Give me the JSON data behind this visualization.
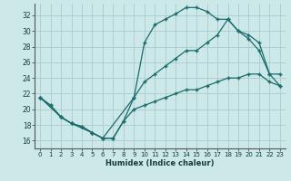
{
  "xlabel": "Humidex (Indice chaleur)",
  "background_color": "#cce8e8",
  "grid_color": "#aacccc",
  "line_color": "#1a6b6b",
  "xlim": [
    -0.5,
    23.5
  ],
  "ylim": [
    15.0,
    33.5
  ],
  "yticks": [
    16,
    18,
    20,
    22,
    24,
    26,
    28,
    30,
    32
  ],
  "xticks": [
    0,
    1,
    2,
    3,
    4,
    5,
    6,
    7,
    8,
    9,
    10,
    11,
    12,
    13,
    14,
    15,
    16,
    17,
    18,
    19,
    20,
    21,
    22,
    23
  ],
  "line1_x": [
    0,
    1,
    2,
    3,
    4,
    5,
    6,
    7,
    8,
    9,
    10,
    11,
    12,
    13,
    14,
    15,
    16,
    17,
    18,
    19,
    20,
    21,
    22,
    23
  ],
  "line1_y": [
    21.5,
    20.5,
    19.0,
    18.2,
    17.8,
    17.0,
    16.3,
    16.3,
    18.5,
    21.5,
    28.5,
    30.8,
    31.5,
    32.2,
    33.0,
    33.0,
    32.5,
    31.5,
    31.5,
    30.0,
    29.0,
    27.5,
    24.5,
    24.5
  ],
  "line2_x": [
    0,
    2,
    3,
    5,
    6,
    9,
    10,
    11,
    12,
    13,
    14,
    15,
    16,
    17,
    18,
    19,
    20,
    21,
    22,
    23
  ],
  "line2_y": [
    21.5,
    19.0,
    18.2,
    17.0,
    16.3,
    21.5,
    23.5,
    24.5,
    25.5,
    26.5,
    27.5,
    27.5,
    28.5,
    29.5,
    31.5,
    30.0,
    29.5,
    28.5,
    24.5,
    23.0
  ],
  "line3_x": [
    0,
    1,
    2,
    3,
    4,
    5,
    6,
    7,
    8,
    9,
    10,
    11,
    12,
    13,
    14,
    15,
    16,
    17,
    18,
    19,
    20,
    21,
    22,
    23
  ],
  "line3_y": [
    21.5,
    20.5,
    19.0,
    18.2,
    17.8,
    17.0,
    16.3,
    16.3,
    18.5,
    20.0,
    20.5,
    21.0,
    21.5,
    22.0,
    22.5,
    22.5,
    23.0,
    23.5,
    24.0,
    24.0,
    24.5,
    24.5,
    23.5,
    23.0
  ]
}
